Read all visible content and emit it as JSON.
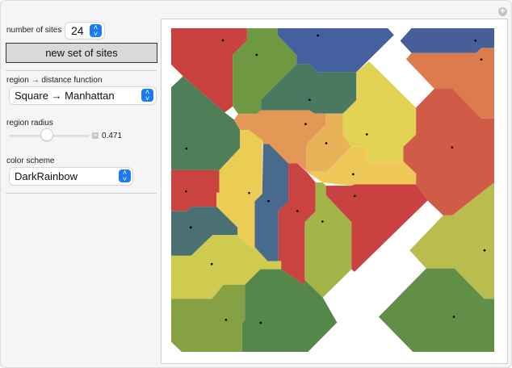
{
  "controls": {
    "sites_label": "number of sites",
    "sites_value": "24",
    "new_sites_button": "new set of sites",
    "distance_label": "region → distance function",
    "distance_value": "Square → Manhattan",
    "radius_label": "region radius",
    "radius_value": "0.471",
    "radius_slider_fraction": 0.471,
    "color_label": "color scheme",
    "color_value": "DarkRainbow"
  },
  "colors": {
    "accent": "#1a7cf5",
    "regions": [
      "#c8413f",
      "#6f9843",
      "#44609e",
      "#465f99",
      "#db7b4e",
      "#4a7962",
      "#e1d253",
      "#d05b46",
      "#4e7f58",
      "#e39855",
      "#e9b258",
      "#efc958",
      "#c94340",
      "#ebcc55",
      "#476a8d",
      "#c94341",
      "#a3b448",
      "#c94140",
      "#4a7074",
      "#cfca50",
      "#b8bd4d",
      "#85a144",
      "#55874b",
      "#618f48"
    ],
    "site": "#000000"
  }
}
